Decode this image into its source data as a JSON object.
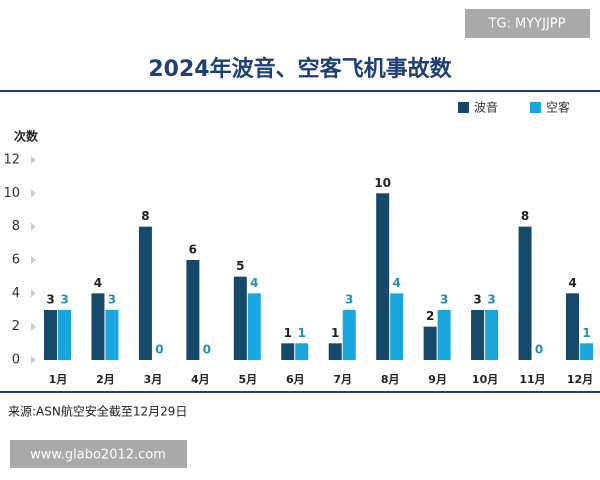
{
  "chart_data": {
    "type": "bar",
    "title": "2024年波音、空客飞机事故数",
    "y_label": "次数",
    "categories": [
      "1月",
      "2月",
      "3月",
      "4月",
      "5月",
      "6月",
      "7月",
      "8月",
      "9月",
      "10月",
      "11月",
      "12月"
    ],
    "series": [
      {
        "name": "波音",
        "color": "#17496b",
        "values": [
          3,
          4,
          8,
          6,
          5,
          1,
          1,
          10,
          2,
          3,
          8,
          4
        ]
      },
      {
        "name": "空客",
        "color": "#1aa6dc",
        "values": [
          3,
          3,
          0,
          0,
          4,
          1,
          3,
          4,
          3,
          3,
          0,
          1
        ]
      }
    ],
    "ylim": [
      0,
      12
    ],
    "yticks": [
      0,
      2,
      4,
      6,
      8,
      10,
      12
    ],
    "grid": false,
    "legend": "top-right",
    "source": "来源:ASN航空安全截至12月29日"
  },
  "watermarks": [
    "TG: MYYJJPP",
    "www.glabo2012.com"
  ]
}
